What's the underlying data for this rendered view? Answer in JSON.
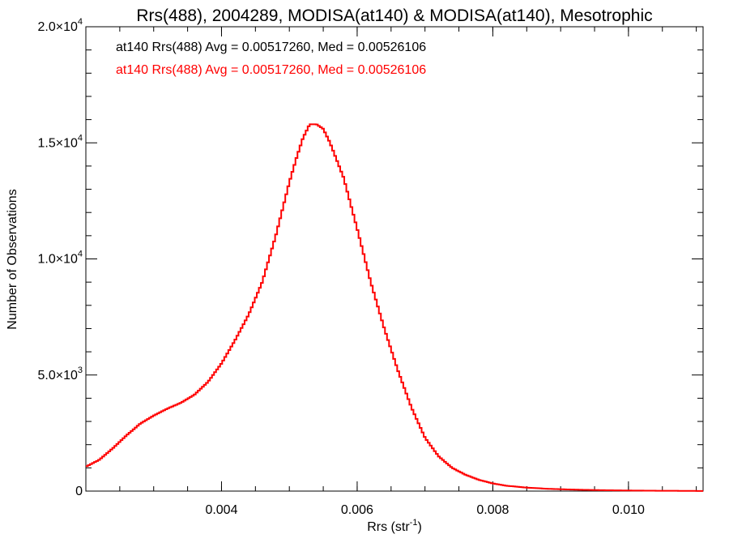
{
  "chart_data": {
    "type": "line",
    "style": "histogram-step",
    "title": "Rrs(488), 2004289, MODISA(at140) & MODISA(at140), Mesotrophic",
    "xlabel": {
      "text": "Rrs (str",
      "sup": "-1",
      "suffix": ")"
    },
    "ylabel": "Number of Observations",
    "xlim": [
      0.002,
      0.0111
    ],
    "ylim": [
      0,
      20000
    ],
    "grid": false,
    "x_ticks": [
      {
        "value": 0.004,
        "label": "0.004"
      },
      {
        "value": 0.006,
        "label": "0.006"
      },
      {
        "value": 0.008,
        "label": "0.008"
      },
      {
        "value": 0.01,
        "label": "0.010"
      }
    ],
    "y_ticks": [
      {
        "value": 0,
        "label": "0",
        "sup": ""
      },
      {
        "value": 5000,
        "label": "5.0×10",
        "sup": "3"
      },
      {
        "value": 10000,
        "label": "1.0×10",
        "sup": "4"
      },
      {
        "value": 15000,
        "label": "1.5×10",
        "sup": "4"
      },
      {
        "value": 20000,
        "label": "2.0×10",
        "sup": "4"
      }
    ],
    "annotations": [
      {
        "text": "at140 Rrs(488) Avg = 0.00517260, Med = 0.00526106",
        "color": "#000000"
      },
      {
        "text": "at140 Rrs(488) Avg = 0.00517260, Med = 0.00526106",
        "color": "#ff0000"
      }
    ],
    "series": [
      {
        "color": "#ff0000",
        "points": [
          [
            0.002,
            1050
          ],
          [
            0.0022,
            1350
          ],
          [
            0.0024,
            1850
          ],
          [
            0.0026,
            2400
          ],
          [
            0.0028,
            2900
          ],
          [
            0.003,
            3250
          ],
          [
            0.0032,
            3550
          ],
          [
            0.0034,
            3800
          ],
          [
            0.0036,
            4150
          ],
          [
            0.0038,
            4700
          ],
          [
            0.004,
            5500
          ],
          [
            0.0042,
            6500
          ],
          [
            0.0044,
            7600
          ],
          [
            0.0046,
            9000
          ],
          [
            0.0048,
            11000
          ],
          [
            0.005,
            13300
          ],
          [
            0.0051,
            14300
          ],
          [
            0.0052,
            15200
          ],
          [
            0.0053,
            15800
          ],
          [
            0.0054,
            15800
          ],
          [
            0.0055,
            15600
          ],
          [
            0.0056,
            15000
          ],
          [
            0.0058,
            13500
          ],
          [
            0.006,
            11300
          ],
          [
            0.0062,
            9000
          ],
          [
            0.0064,
            7000
          ],
          [
            0.0066,
            5200
          ],
          [
            0.0068,
            3600
          ],
          [
            0.007,
            2300
          ],
          [
            0.0072,
            1500
          ],
          [
            0.0074,
            1000
          ],
          [
            0.0076,
            700
          ],
          [
            0.0078,
            480
          ],
          [
            0.008,
            330
          ],
          [
            0.0082,
            230
          ],
          [
            0.0085,
            150
          ],
          [
            0.0088,
            100
          ],
          [
            0.0091,
            70
          ],
          [
            0.0094,
            50
          ],
          [
            0.0097,
            35
          ],
          [
            0.01,
            25
          ],
          [
            0.0104,
            15
          ],
          [
            0.0108,
            10
          ],
          [
            0.0111,
            5
          ]
        ]
      }
    ]
  }
}
